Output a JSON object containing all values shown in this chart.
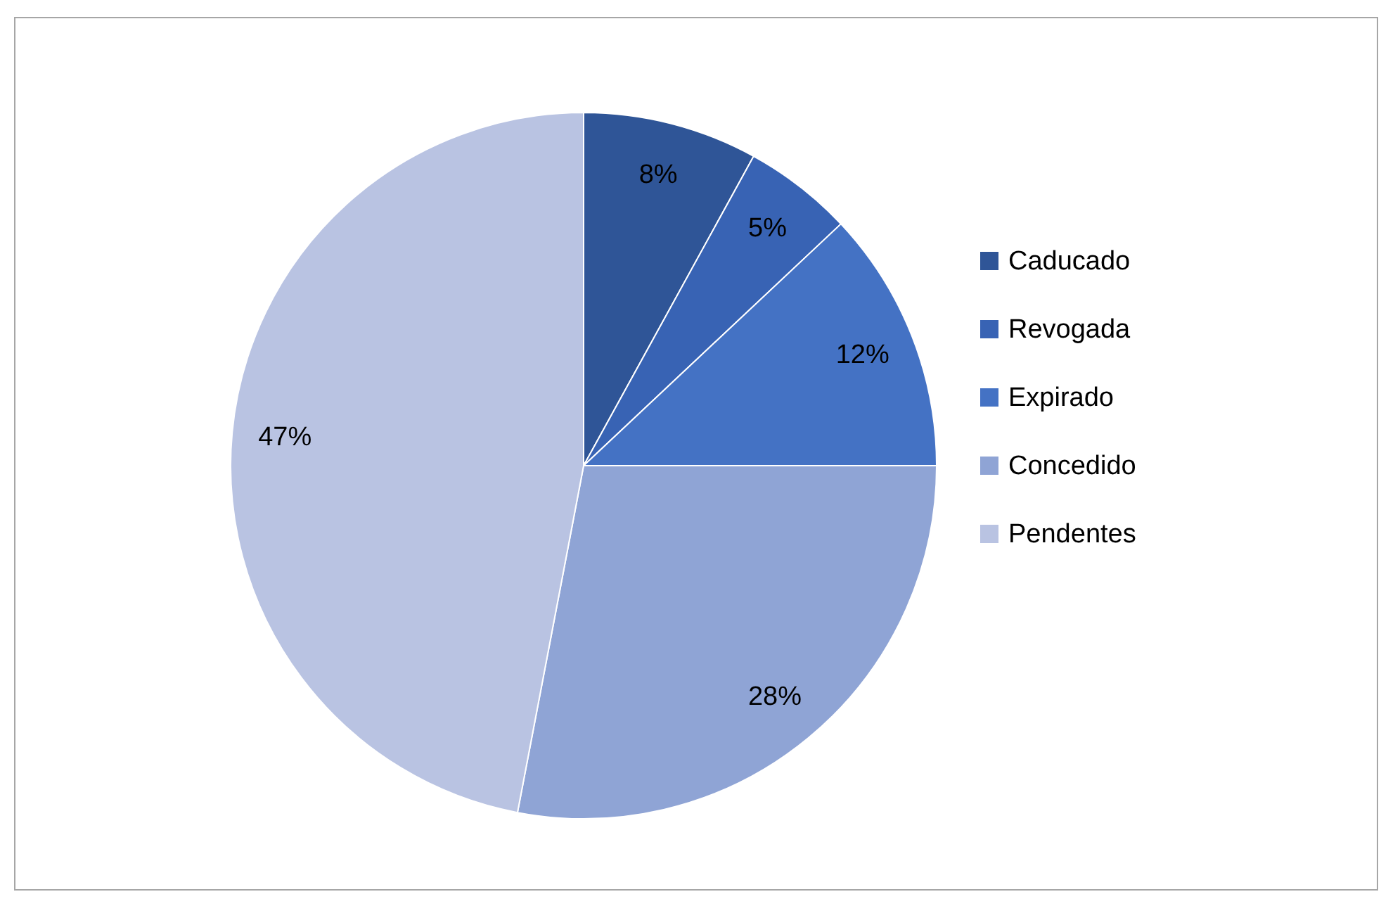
{
  "chart_data": {
    "type": "pie",
    "categories": [
      "Caducado",
      "Revogada",
      "Expirado",
      "Concedido",
      "Pendentes"
    ],
    "values": [
      8,
      5,
      12,
      28,
      47
    ],
    "colors": [
      "#2f5597",
      "#3863b4",
      "#4472c4",
      "#8fa4d5",
      "#b9c3e2"
    ],
    "value_labels": [
      "8%",
      "5%",
      "12%",
      "28%",
      "47%"
    ],
    "legend": "right"
  }
}
